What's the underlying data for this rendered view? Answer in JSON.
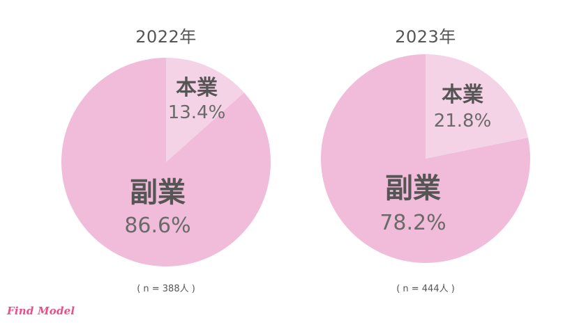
{
  "chart_data": [
    {
      "type": "pie",
      "title": "2022年",
      "categories": [
        "本業",
        "副業"
      ],
      "values": [
        13.4,
        86.6
      ],
      "value_labels": [
        "13.4%",
        "86.6%"
      ],
      "colors": [
        "#f5d3e6",
        "#f0bcd9"
      ],
      "sample_size": "( n = 388人 )"
    },
    {
      "type": "pie",
      "title": "2023年",
      "categories": [
        "本業",
        "副業"
      ],
      "values": [
        21.8,
        78.2
      ],
      "value_labels": [
        "21.8%",
        "78.2%"
      ],
      "colors": [
        "#f5d3e6",
        "#f0bcd9"
      ],
      "sample_size": "( n = 444人 )"
    }
  ],
  "brand": {
    "logo_text": "Find Model",
    "logo_color": "#e8508a"
  }
}
